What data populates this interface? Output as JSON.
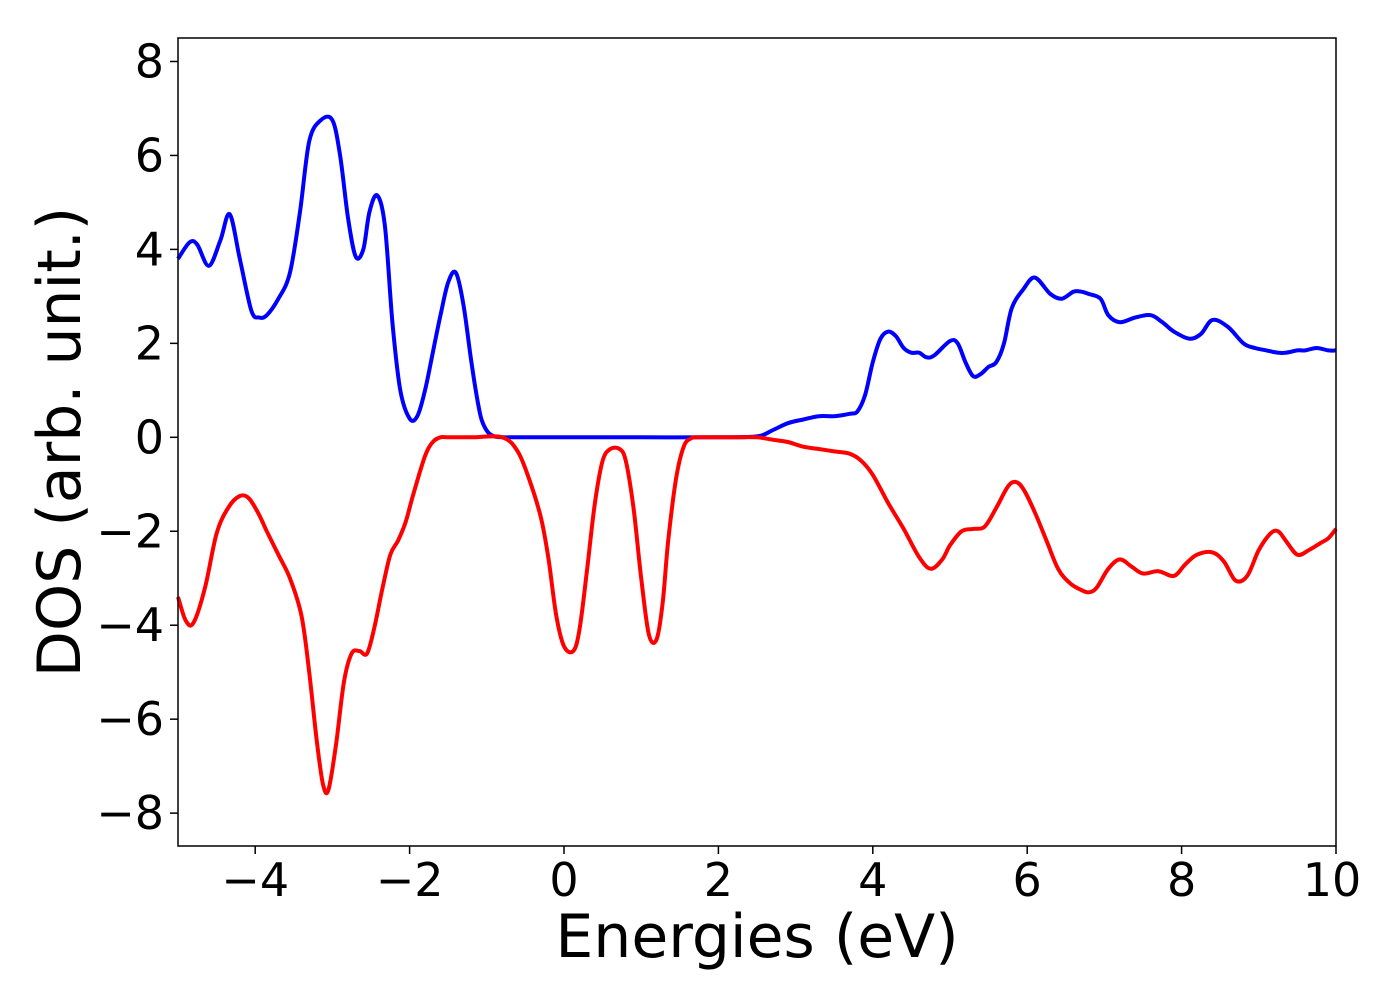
{
  "chart_data": {
    "type": "line",
    "title": "",
    "xlabel": "Energies (eV)",
    "ylabel": "DOS (arb. unit.)",
    "xlim": [
      -5,
      10
    ],
    "ylim": [
      -8.7,
      8.5
    ],
    "xticks": [
      -4,
      -2,
      0,
      2,
      4,
      6,
      8,
      10
    ],
    "yticks": [
      -8,
      -6,
      -4,
      -2,
      0,
      2,
      4,
      6,
      8
    ],
    "grid": false,
    "legend": "none",
    "series": [
      {
        "color": "#0000ff",
        "x": [
          -5.0,
          -4.85,
          -4.75,
          -4.6,
          -4.45,
          -4.33,
          -4.2,
          -4.05,
          -3.95,
          -3.85,
          -3.7,
          -3.55,
          -3.42,
          -3.3,
          -3.15,
          -3.0,
          -2.9,
          -2.8,
          -2.7,
          -2.6,
          -2.52,
          -2.42,
          -2.32,
          -2.22,
          -2.12,
          -2.0,
          -1.9,
          -1.8,
          -1.7,
          -1.6,
          -1.5,
          -1.4,
          -1.3,
          -1.2,
          -1.1,
          -1.05,
          -0.98,
          -0.9,
          -0.8,
          -0.7,
          -0.6,
          -0.5,
          -0.3,
          0.0,
          1.0,
          2.0,
          2.5,
          2.7,
          2.9,
          3.1,
          3.3,
          3.5,
          3.7,
          3.8,
          3.9,
          4.0,
          4.1,
          4.2,
          4.3,
          4.4,
          4.5,
          4.6,
          4.7,
          4.8,
          5.0,
          5.1,
          5.2,
          5.3,
          5.4,
          5.5,
          5.6,
          5.7,
          5.8,
          5.95,
          6.1,
          6.3,
          6.45,
          6.6,
          6.7,
          6.8,
          6.95,
          7.05,
          7.2,
          7.4,
          7.6,
          7.75,
          7.9,
          8.1,
          8.25,
          8.4,
          8.6,
          8.8,
          8.95,
          9.1,
          9.25,
          9.35,
          9.5,
          9.6,
          9.75,
          9.9,
          10.0
        ],
        "y": [
          3.8,
          4.15,
          4.1,
          3.65,
          4.2,
          4.75,
          3.8,
          2.7,
          2.55,
          2.6,
          2.95,
          3.5,
          4.8,
          6.3,
          6.75,
          6.75,
          6.0,
          4.7,
          3.85,
          4.0,
          4.8,
          5.15,
          4.5,
          2.4,
          1.0,
          0.4,
          0.45,
          1.0,
          1.8,
          2.6,
          3.3,
          3.5,
          2.8,
          1.6,
          0.6,
          0.3,
          0.1,
          0.02,
          0.0,
          0.0,
          0.0,
          0.0,
          0.0,
          0.0,
          0.0,
          0.0,
          0.02,
          0.15,
          0.3,
          0.38,
          0.45,
          0.45,
          0.5,
          0.55,
          0.9,
          1.6,
          2.1,
          2.25,
          2.15,
          1.9,
          1.8,
          1.8,
          1.7,
          1.75,
          2.05,
          2.0,
          1.6,
          1.3,
          1.35,
          1.5,
          1.6,
          2.0,
          2.75,
          3.15,
          3.4,
          3.05,
          2.95,
          3.1,
          3.1,
          3.05,
          2.95,
          2.6,
          2.45,
          2.55,
          2.6,
          2.45,
          2.25,
          2.1,
          2.2,
          2.5,
          2.35,
          2.0,
          1.9,
          1.85,
          1.8,
          1.8,
          1.85,
          1.85,
          1.9,
          1.85,
          1.85
        ]
      },
      {
        "color": "#ff0000",
        "x": [
          -5.0,
          -4.9,
          -4.8,
          -4.65,
          -4.5,
          -4.35,
          -4.2,
          -4.08,
          -3.95,
          -3.85,
          -3.7,
          -3.55,
          -3.4,
          -3.3,
          -3.2,
          -3.12,
          -3.05,
          -2.95,
          -2.85,
          -2.75,
          -2.65,
          -2.55,
          -2.45,
          -2.35,
          -2.25,
          -2.15,
          -2.05,
          -1.95,
          -1.8,
          -1.7,
          -1.6,
          -1.5,
          -1.2,
          -0.8,
          -0.6,
          -0.45,
          -0.3,
          -0.2,
          -0.1,
          0.0,
          0.12,
          0.2,
          0.3,
          0.4,
          0.5,
          0.6,
          0.72,
          0.8,
          0.9,
          1.0,
          1.1,
          1.2,
          1.28,
          1.35,
          1.45,
          1.55,
          1.65,
          1.75,
          1.9,
          2.2,
          2.5,
          2.7,
          2.9,
          3.1,
          3.3,
          3.5,
          3.7,
          3.85,
          4.0,
          4.2,
          4.4,
          4.6,
          4.75,
          4.9,
          5.0,
          5.15,
          5.3,
          5.45,
          5.6,
          5.75,
          5.85,
          5.95,
          6.1,
          6.25,
          6.4,
          6.55,
          6.7,
          6.8,
          6.9,
          7.05,
          7.2,
          7.35,
          7.5,
          7.7,
          7.9,
          8.05,
          8.2,
          8.4,
          8.55,
          8.7,
          8.85,
          9.0,
          9.15,
          9.25,
          9.35,
          9.5,
          9.65,
          9.8,
          9.9,
          10.0
        ],
        "y": [
          -3.4,
          -3.9,
          -3.95,
          -3.2,
          -2.05,
          -1.5,
          -1.25,
          -1.3,
          -1.65,
          -2.0,
          -2.5,
          -3.0,
          -3.8,
          -5.0,
          -6.5,
          -7.4,
          -7.5,
          -6.5,
          -5.2,
          -4.6,
          -4.55,
          -4.6,
          -4.0,
          -3.2,
          -2.5,
          -2.2,
          -1.8,
          -1.2,
          -0.4,
          -0.1,
          0.0,
          0.0,
          0.0,
          0.0,
          -0.3,
          -0.9,
          -1.7,
          -2.6,
          -3.8,
          -4.45,
          -4.55,
          -4.1,
          -2.8,
          -1.4,
          -0.5,
          -0.25,
          -0.25,
          -0.5,
          -1.5,
          -3.0,
          -4.2,
          -4.3,
          -3.5,
          -2.2,
          -0.9,
          -0.2,
          -0.02,
          0.0,
          0.0,
          0.0,
          0.0,
          -0.05,
          -0.1,
          -0.2,
          -0.25,
          -0.3,
          -0.35,
          -0.5,
          -0.8,
          -1.4,
          -1.95,
          -2.55,
          -2.8,
          -2.6,
          -2.3,
          -2.0,
          -1.95,
          -1.9,
          -1.5,
          -1.05,
          -0.95,
          -1.1,
          -1.6,
          -2.2,
          -2.8,
          -3.1,
          -3.25,
          -3.3,
          -3.2,
          -2.8,
          -2.6,
          -2.75,
          -2.9,
          -2.85,
          -2.95,
          -2.7,
          -2.5,
          -2.45,
          -2.65,
          -3.05,
          -2.95,
          -2.4,
          -2.05,
          -2.0,
          -2.2,
          -2.5,
          -2.4,
          -2.25,
          -2.15,
          -1.95
        ]
      }
    ]
  }
}
